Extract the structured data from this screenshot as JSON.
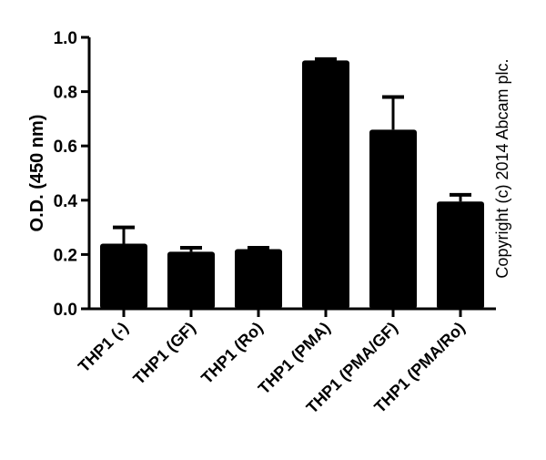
{
  "chart_data": {
    "type": "bar",
    "title": "",
    "xlabel": "",
    "ylabel": "O.D. (450 nm)",
    "ylim": [
      0.0,
      1.0
    ],
    "yticks": [
      "0.0",
      "0.2",
      "0.4",
      "0.6",
      "0.8",
      "1.0"
    ],
    "grid": false,
    "legend": null,
    "categories": [
      "THP1 (-)",
      "THP1 (GF)",
      "THP1 (Ro)",
      "THP1 (PMA)",
      "THP1 (PMA/GF)",
      "THP1 (PMA/Ro)"
    ],
    "values": [
      0.24,
      0.21,
      0.22,
      0.915,
      0.66,
      0.395
    ],
    "error_upper": [
      0.3,
      0.225,
      0.225,
      0.92,
      0.78,
      0.42
    ],
    "bar_color": "#000000",
    "annotations": [
      "Copyright (c) 2014 Abcam plc."
    ]
  },
  "copyright": "Copyright (c) 2014 Abcam plc."
}
